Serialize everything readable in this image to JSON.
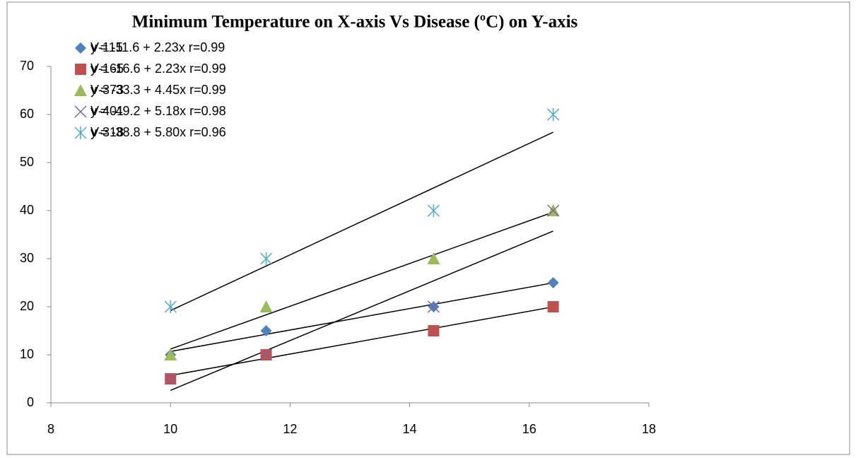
{
  "chart_data": {
    "type": "scatter",
    "title": "Minimum Temperature on X-axis Vs Disease (ºC) on Y-axis",
    "x": [
      10,
      11.6,
      14.4,
      16.4
    ],
    "series": [
      {
        "name": "V-115",
        "color": "#4f81bd",
        "marker": "diamond",
        "values": [
          10,
          15,
          20,
          25
        ],
        "trendline": {
          "intercept": -11.6,
          "slope": 2.23,
          "label": "y = -11.6 + 2.23x  r=0.99"
        }
      },
      {
        "name": "V-165",
        "color": "#c0504d",
        "marker": "square",
        "values": [
          5,
          10,
          15,
          20
        ],
        "trendline": {
          "intercept": -16.6,
          "slope": 2.23,
          "label": "y = -16.6 + 2.23x  r=0.99"
        }
      },
      {
        "name": "V-373",
        "color": "#9bbb59",
        "marker": "triangle",
        "values": [
          10,
          20,
          30,
          40
        ],
        "trendline": {
          "intercept": -33.3,
          "slope": 4.45,
          "label": "y = -33.3 + 4.45x  r=0.99"
        }
      },
      {
        "name": "V-401",
        "color": "#8064a2",
        "marker": "x",
        "values": [
          5,
          10,
          20,
          40
        ],
        "trendline": {
          "intercept": -49.2,
          "slope": 5.18,
          "label": "y = -49.2 + 5.18x  r=0.98"
        }
      },
      {
        "name": "V-318",
        "color": "#4bacc6",
        "marker": "star",
        "values": [
          20,
          30,
          40,
          60
        ],
        "trendline": {
          "intercept": -38.8,
          "slope": 5.8,
          "label": "y = -38.8 + 5.80x  r=0.96"
        }
      }
    ],
    "xlim": [
      8,
      18
    ],
    "xticks": [
      8,
      10,
      12,
      14,
      16,
      18
    ],
    "ylim": [
      0,
      70
    ],
    "yticks": [
      0,
      10,
      20,
      30,
      40,
      50,
      60,
      70
    ],
    "grid": false,
    "legend": "top-left"
  }
}
